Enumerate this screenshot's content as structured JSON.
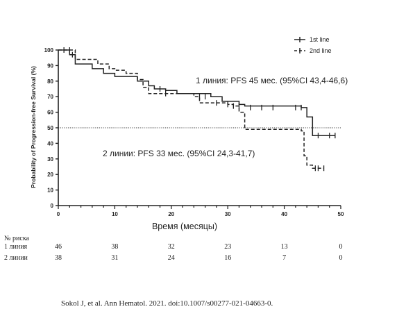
{
  "chart_data": {
    "type": "line",
    "title": "",
    "xlabel": "Время (месяцы)",
    "ylabel": "Probability of Progression-free Survival (%)",
    "xlim": [
      0,
      50
    ],
    "ylim": [
      0,
      100
    ],
    "x_ticks": [
      0,
      10,
      20,
      30,
      40,
      50
    ],
    "y_ticks": [
      0,
      10,
      20,
      30,
      40,
      50,
      60,
      70,
      80,
      90,
      100
    ],
    "reference_line_y": 50,
    "grid": false,
    "legend_position": "top-right",
    "series": [
      {
        "name": "1st line",
        "style": "solid",
        "steps": [
          [
            0,
            100
          ],
          [
            2,
            97
          ],
          [
            3,
            91
          ],
          [
            6,
            88
          ],
          [
            8,
            85
          ],
          [
            10,
            83
          ],
          [
            14,
            80
          ],
          [
            16,
            77
          ],
          [
            17,
            75
          ],
          [
            19,
            74
          ],
          [
            21,
            72
          ],
          [
            27,
            70
          ],
          [
            29,
            67
          ],
          [
            32,
            65
          ],
          [
            33,
            64
          ],
          [
            43,
            63
          ],
          [
            44,
            57
          ],
          [
            45,
            45
          ],
          [
            49,
            45
          ]
        ],
        "censored": [
          [
            1,
            100
          ],
          [
            2.5,
            97
          ],
          [
            18,
            75
          ],
          [
            26,
            70
          ],
          [
            30,
            65
          ],
          [
            32,
            64
          ],
          [
            34,
            63
          ],
          [
            36,
            63
          ],
          [
            38,
            63
          ],
          [
            42,
            63
          ],
          [
            43,
            63
          ],
          [
            46,
            45
          ],
          [
            48,
            45
          ],
          [
            49,
            45
          ]
        ]
      },
      {
        "name": "2nd line",
        "style": "dashed",
        "steps": [
          [
            0,
            100
          ],
          [
            3,
            94
          ],
          [
            7,
            91
          ],
          [
            9,
            88
          ],
          [
            10,
            87
          ],
          [
            12,
            85
          ],
          [
            14,
            81
          ],
          [
            15,
            76
          ],
          [
            16,
            72
          ],
          [
            24,
            70
          ],
          [
            25,
            66
          ],
          [
            30,
            65
          ],
          [
            31,
            64
          ],
          [
            32,
            60
          ],
          [
            33,
            49
          ],
          [
            43,
            48
          ],
          [
            43.5,
            32
          ],
          [
            44,
            26
          ],
          [
            45,
            24
          ],
          [
            47,
            24
          ]
        ],
        "censored": [
          [
            2,
            100
          ],
          [
            19,
            72
          ],
          [
            25,
            70
          ],
          [
            28,
            66
          ],
          [
            31,
            64
          ],
          [
            45.5,
            24
          ],
          [
            46,
            24
          ],
          [
            47,
            24
          ]
        ]
      }
    ],
    "annotations": [
      "1 линия: PFS 45 мес. (95%CI 43,4-46,6)",
      "2 линии: PFS 33 мес. (95%CI 24,3-41,7)"
    ],
    "risk_table": {
      "header": "№ риска",
      "rows": [
        {
          "label": "1 линия",
          "values": [
            "46",
            "38",
            "32",
            "23",
            "13",
            "0"
          ]
        },
        {
          "label": "2 линии",
          "values": [
            "38",
            "31",
            "24",
            "16",
            "7",
            "0"
          ]
        }
      ]
    },
    "source": "Sokol J, et al. Ann Hematol. 2021. doi:10.1007/s00277-021-04663-0."
  }
}
